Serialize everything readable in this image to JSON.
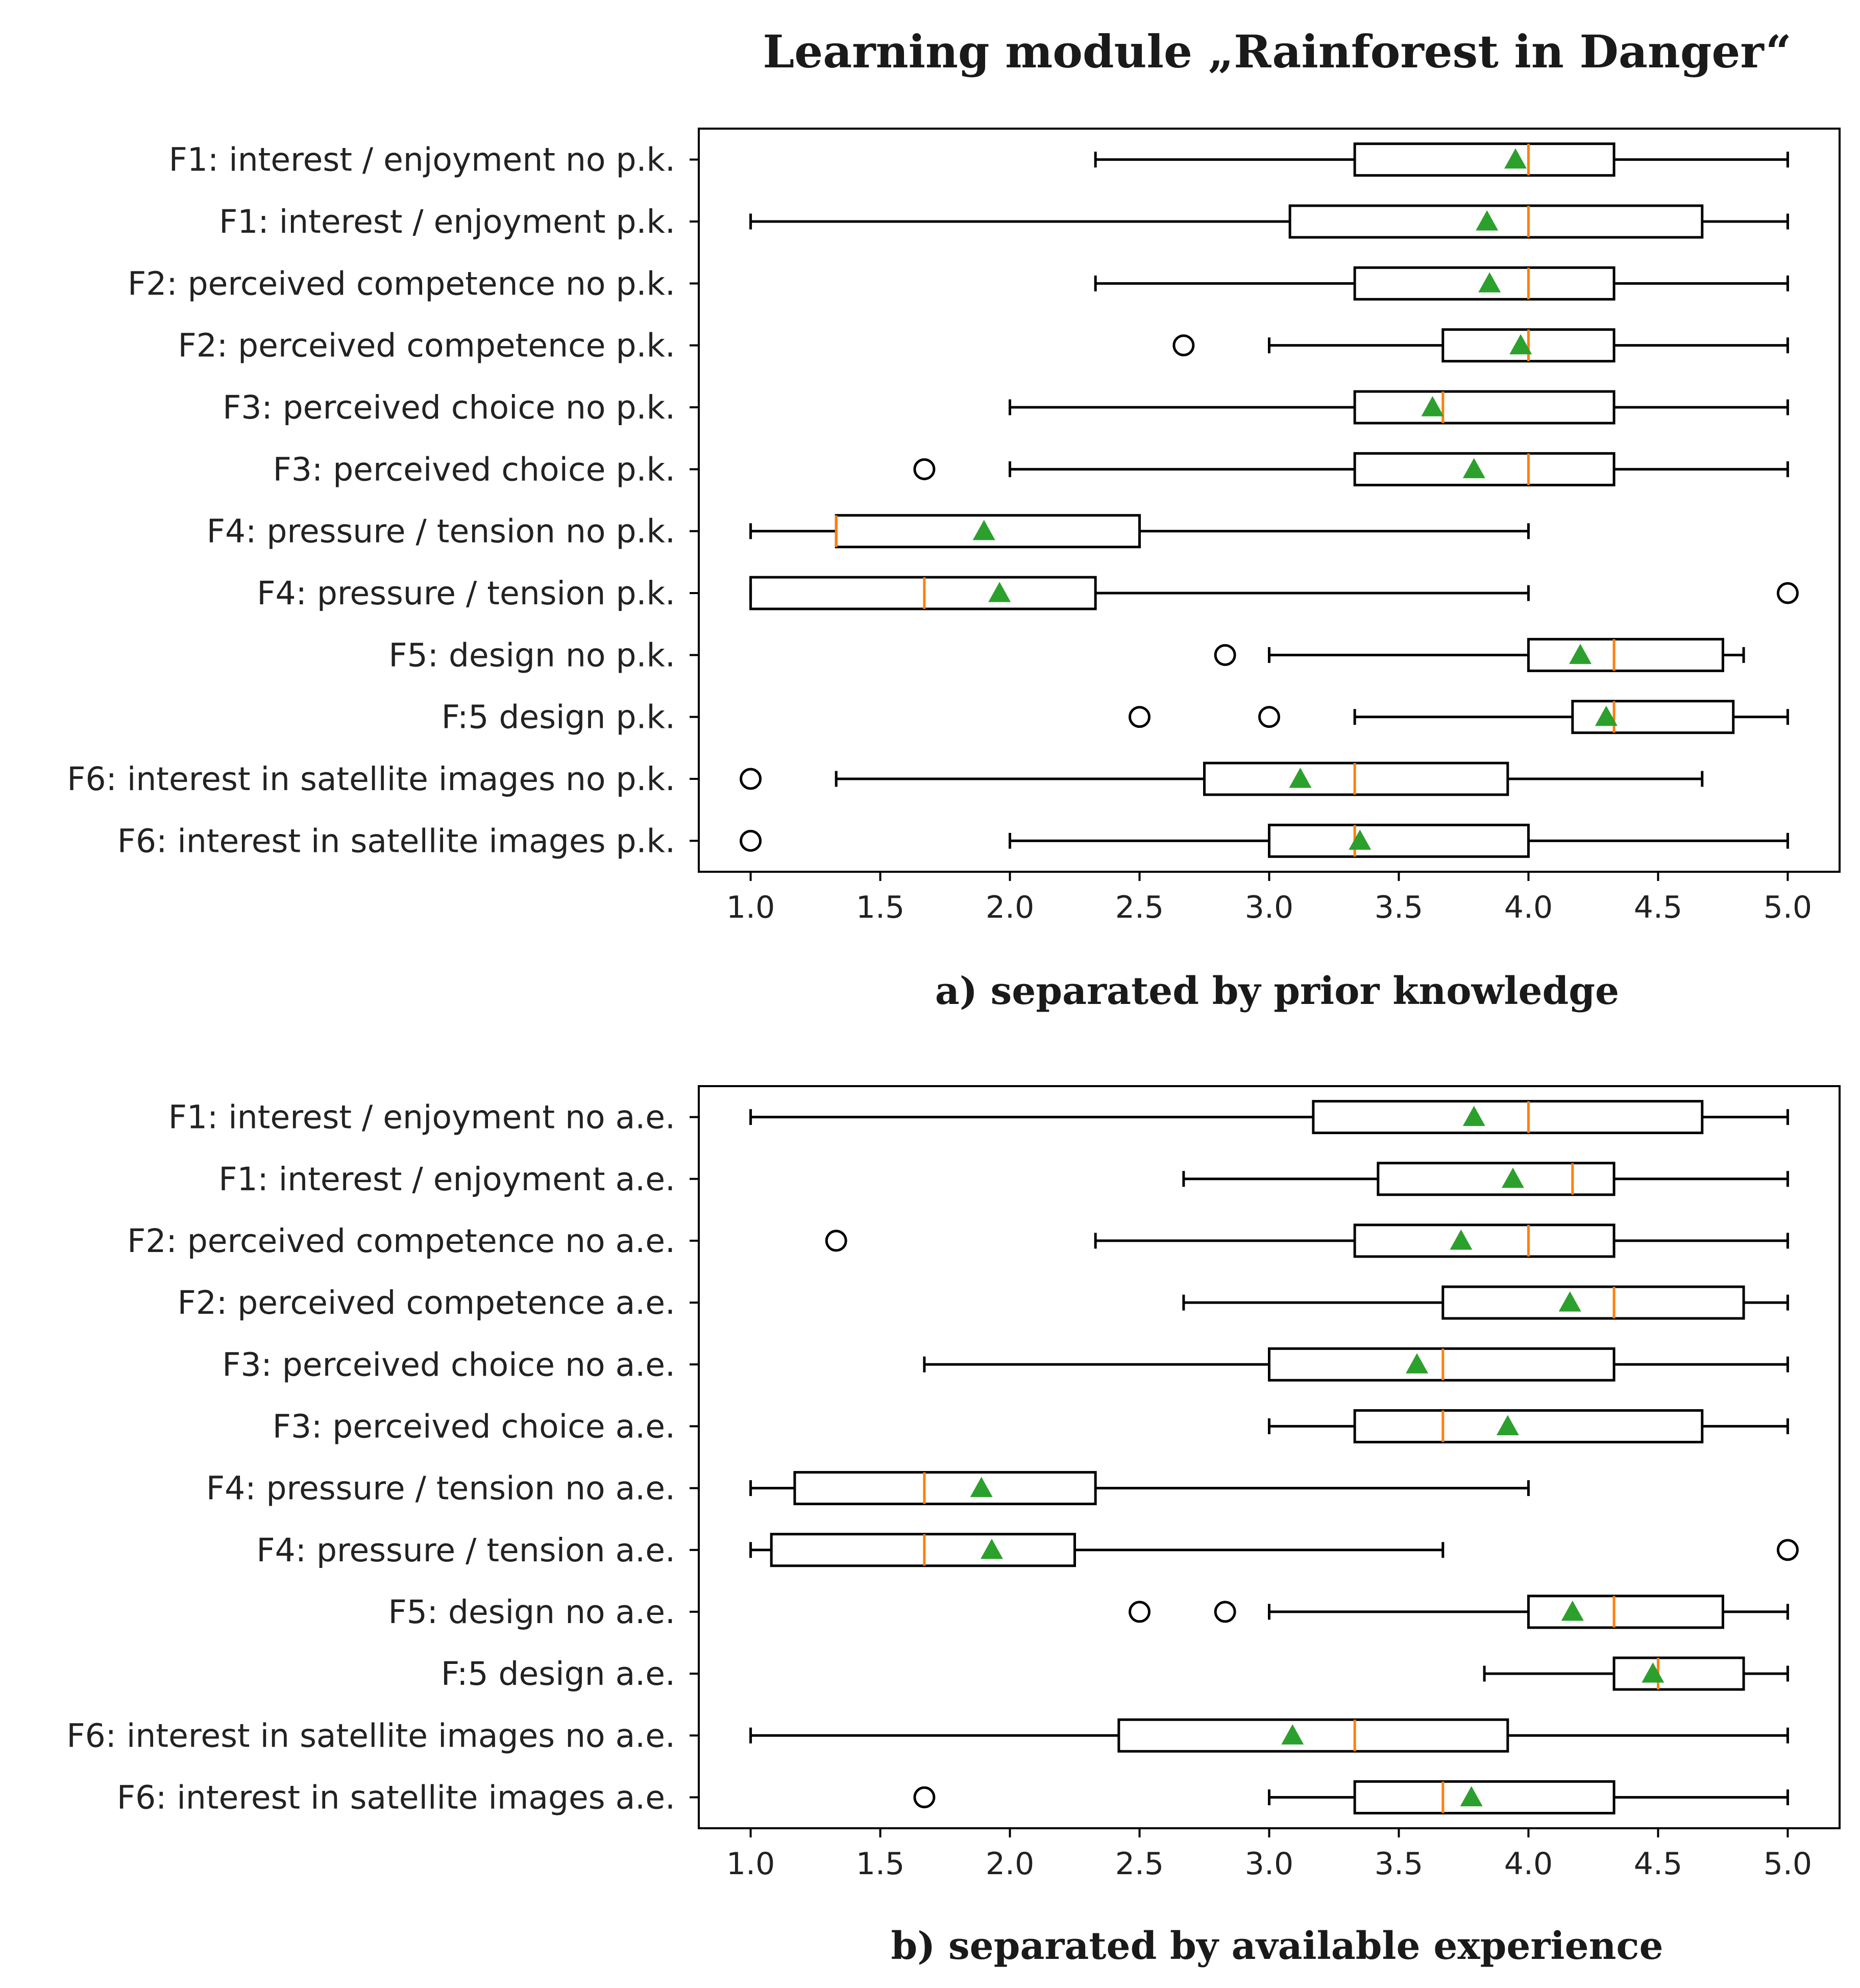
{
  "title": "Learning module „Rainforest in Danger“",
  "colors": {
    "box": "#000000",
    "median": "#ff7f0e",
    "mean": "#2ca02c",
    "flier": "#000000"
  },
  "chart_data": [
    {
      "type": "boxplot",
      "orientation": "horizontal",
      "caption": "a) separated by prior knowledge",
      "xlim": [
        0.8,
        5.2
      ],
      "xticks": [
        1.0,
        1.5,
        2.0,
        2.5,
        3.0,
        3.5,
        4.0,
        4.5,
        5.0
      ],
      "xtick_labels": [
        "1.0",
        "1.5",
        "2.0",
        "2.5",
        "3.0",
        "3.5",
        "4.0",
        "4.5",
        "5.0"
      ],
      "series": [
        {
          "label": "F1: interest / enjoyment no p.k.",
          "whislo": 2.33,
          "q1": 3.33,
          "med": 4.0,
          "q3": 4.33,
          "whishi": 5.0,
          "mean": 3.95,
          "fliers": []
        },
        {
          "label": "F1: interest / enjoyment p.k.",
          "whislo": 1.0,
          "q1": 3.08,
          "med": 4.0,
          "q3": 4.67,
          "whishi": 5.0,
          "mean": 3.84,
          "fliers": []
        },
        {
          "label": "F2: perceived competence no p.k.",
          "whislo": 2.33,
          "q1": 3.33,
          "med": 4.0,
          "q3": 4.33,
          "whishi": 5.0,
          "mean": 3.85,
          "fliers": []
        },
        {
          "label": "F2: perceived competence p.k.",
          "whislo": 3.0,
          "q1": 3.67,
          "med": 4.0,
          "q3": 4.33,
          "whishi": 5.0,
          "mean": 3.97,
          "fliers": [
            2.67
          ]
        },
        {
          "label": "F3: perceived choice no p.k.",
          "whislo": 2.0,
          "q1": 3.33,
          "med": 3.67,
          "q3": 4.33,
          "whishi": 5.0,
          "mean": 3.63,
          "fliers": []
        },
        {
          "label": "F3: perceived choice p.k.",
          "whislo": 2.0,
          "q1": 3.33,
          "med": 4.0,
          "q3": 4.33,
          "whishi": 5.0,
          "mean": 3.79,
          "fliers": [
            1.67
          ]
        },
        {
          "label": "F4: pressure / tension no p.k.",
          "whislo": 1.0,
          "q1": 1.33,
          "med": 1.33,
          "q3": 2.5,
          "whishi": 4.0,
          "mean": 1.9,
          "fliers": []
        },
        {
          "label": "F4: pressure / tension p.k.",
          "whislo": 1.0,
          "q1": 1.0,
          "med": 1.67,
          "q3": 2.33,
          "whishi": 4.0,
          "mean": 1.96,
          "fliers": [
            5.0
          ]
        },
        {
          "label": "F5: design no p.k.",
          "whislo": 3.0,
          "q1": 4.0,
          "med": 4.33,
          "q3": 4.75,
          "whishi": 4.83,
          "mean": 4.2,
          "fliers": [
            2.83
          ]
        },
        {
          "label": "F:5 design p.k.",
          "whislo": 3.33,
          "q1": 4.17,
          "med": 4.33,
          "q3": 4.79,
          "whishi": 5.0,
          "mean": 4.3,
          "fliers": [
            2.5,
            3.0
          ]
        },
        {
          "label": "F6: interest in satellite images no p.k.",
          "whislo": 1.33,
          "q1": 2.75,
          "med": 3.33,
          "q3": 3.92,
          "whishi": 4.67,
          "mean": 3.12,
          "fliers": [
            1.0
          ]
        },
        {
          "label": "F6: interest in satellite images p.k.",
          "whislo": 2.0,
          "q1": 3.0,
          "med": 3.33,
          "q3": 4.0,
          "whishi": 5.0,
          "mean": 3.35,
          "fliers": [
            1.0
          ]
        }
      ]
    },
    {
      "type": "boxplot",
      "orientation": "horizontal",
      "caption": "b) separated by available experience",
      "xlim": [
        0.8,
        5.2
      ],
      "xticks": [
        1.0,
        1.5,
        2.0,
        2.5,
        3.0,
        3.5,
        4.0,
        4.5,
        5.0
      ],
      "xtick_labels": [
        "1.0",
        "1.5",
        "2.0",
        "2.5",
        "3.0",
        "3.5",
        "4.0",
        "4.5",
        "5.0"
      ],
      "series": [
        {
          "label": "F1: interest / enjoyment no a.e.",
          "whislo": 1.0,
          "q1": 3.17,
          "med": 4.0,
          "q3": 4.67,
          "whishi": 5.0,
          "mean": 3.79,
          "fliers": []
        },
        {
          "label": "F1: interest / enjoyment a.e.",
          "whislo": 2.67,
          "q1": 3.42,
          "med": 4.17,
          "q3": 4.33,
          "whishi": 5.0,
          "mean": 3.94,
          "fliers": []
        },
        {
          "label": "F2: perceived competence no a.e.",
          "whislo": 2.33,
          "q1": 3.33,
          "med": 4.0,
          "q3": 4.33,
          "whishi": 5.0,
          "mean": 3.74,
          "fliers": [
            1.33
          ]
        },
        {
          "label": "F2: perceived competence a.e.",
          "whislo": 2.67,
          "q1": 3.67,
          "med": 4.33,
          "q3": 4.83,
          "whishi": 5.0,
          "mean": 4.16,
          "fliers": []
        },
        {
          "label": "F3: perceived choice no a.e.",
          "whislo": 1.67,
          "q1": 3.0,
          "med": 3.67,
          "q3": 4.33,
          "whishi": 5.0,
          "mean": 3.57,
          "fliers": []
        },
        {
          "label": "F3: perceived choice a.e.",
          "whislo": 3.0,
          "q1": 3.33,
          "med": 3.67,
          "q3": 4.67,
          "whishi": 5.0,
          "mean": 3.92,
          "fliers": []
        },
        {
          "label": "F4: pressure / tension no a.e.",
          "whislo": 1.0,
          "q1": 1.17,
          "med": 1.67,
          "q3": 2.33,
          "whishi": 4.0,
          "mean": 1.89,
          "fliers": []
        },
        {
          "label": "F4: pressure / tension a.e.",
          "whislo": 1.0,
          "q1": 1.08,
          "med": 1.67,
          "q3": 2.25,
          "whishi": 3.67,
          "mean": 1.93,
          "fliers": [
            5.0
          ]
        },
        {
          "label": "F5: design no a.e.",
          "whislo": 3.0,
          "q1": 4.0,
          "med": 4.33,
          "q3": 4.75,
          "whishi": 5.0,
          "mean": 4.17,
          "fliers": [
            2.5,
            2.83
          ]
        },
        {
          "label": "F:5 design a.e.",
          "whislo": 3.83,
          "q1": 4.33,
          "med": 4.5,
          "q3": 4.83,
          "whishi": 5.0,
          "mean": 4.48,
          "fliers": []
        },
        {
          "label": "F6: interest in satellite images no a.e.",
          "whislo": 1.0,
          "q1": 2.42,
          "med": 3.33,
          "q3": 3.92,
          "whishi": 5.0,
          "mean": 3.09,
          "fliers": []
        },
        {
          "label": "F6: interest in satellite images a.e.",
          "whislo": 3.0,
          "q1": 3.33,
          "med": 3.67,
          "q3": 4.33,
          "whishi": 5.0,
          "mean": 3.78,
          "fliers": [
            1.67
          ]
        }
      ]
    }
  ]
}
